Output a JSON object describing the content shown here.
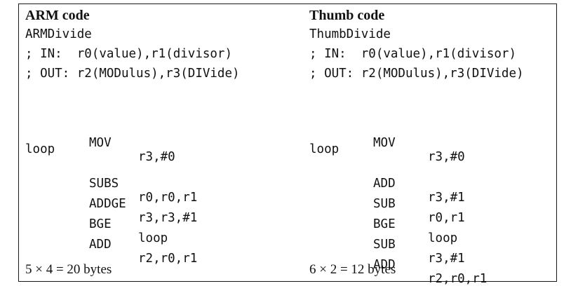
{
  "arm": {
    "title": "ARM code",
    "func": "ARMDivide",
    "in": "; IN:  r0(value),r1(divisor)",
    "out": "; OUT: r2(MODulus),r3(DIVide)",
    "lines": [
      {
        "label": "",
        "op": "MOV",
        "args": "r3,#0"
      },
      {
        "label": "loop",
        "op": "",
        "args": ""
      },
      {
        "label": "",
        "op": "SUBS",
        "args": "r0,r0,r1"
      },
      {
        "label": "",
        "op": "ADDGE",
        "args": "r3,r3,#1"
      },
      {
        "label": "",
        "op": "BGE",
        "args": "loop"
      },
      {
        "label": "",
        "op": "ADD",
        "args": "r2,r0,r1"
      }
    ],
    "footer": "5 × 4 = 20  bytes"
  },
  "thumb": {
    "title": "Thumb code",
    "func": "ThumbDivide",
    "in": "; IN:  r0(value),r1(divisor)",
    "out": "; OUT: r2(MODulus),r3(DIVide)",
    "lines": [
      {
        "label": "",
        "op": "MOV",
        "args": "r3,#0"
      },
      {
        "label": "loop",
        "op": "",
        "args": ""
      },
      {
        "label": "",
        "op": "ADD",
        "args": "r3,#1"
      },
      {
        "label": "",
        "op": "SUB",
        "args": "r0,r1"
      },
      {
        "label": "",
        "op": "BGE",
        "args": "loop"
      },
      {
        "label": "",
        "op": "SUB",
        "args": "r3,#1"
      },
      {
        "label": "",
        "op": "ADD",
        "args": "r2,r0,r1"
      }
    ],
    "footer": "6 × 2 = 12  bytes"
  }
}
